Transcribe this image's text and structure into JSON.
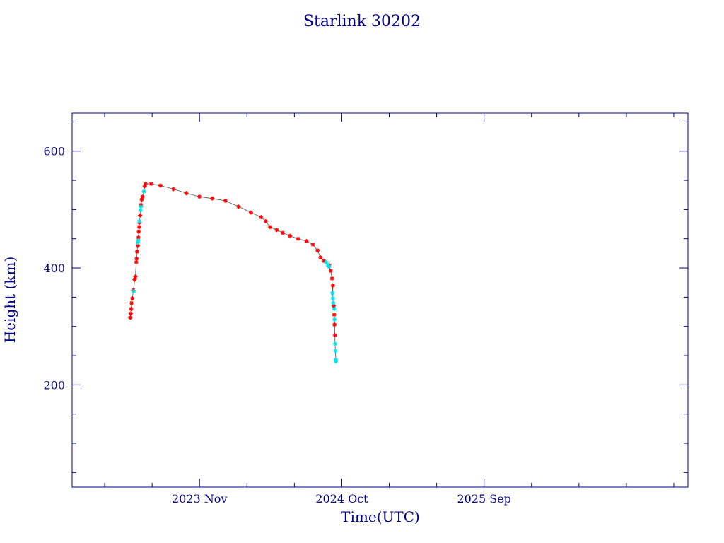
{
  "chart_data": {
    "type": "scatter",
    "title": "Starlink 30202",
    "xlabel": "Time(UTC)",
    "ylabel": "Height (km)",
    "x_axis_type": "date",
    "xlim": [
      "2023-01-05",
      "2026-12-25"
    ],
    "ylim": [
      25,
      665
    ],
    "x_ticks": [
      {
        "value": "2023-11-01",
        "label": "2023 Nov"
      },
      {
        "value": "2024-10-01",
        "label": "2024 Oct"
      },
      {
        "value": "2025-09-01",
        "label": "2025 Sep"
      }
    ],
    "y_ticks": [
      {
        "value": 200,
        "label": "200"
      },
      {
        "value": 400,
        "label": "400"
      },
      {
        "value": 600,
        "label": "600"
      }
    ],
    "grid": false,
    "legend": "none",
    "connector_color": "#555555",
    "series": [
      {
        "color": "#ff0000",
        "marker": "asterisk",
        "points": [
          [
            "2023-05-22",
            315
          ],
          [
            "2023-05-23",
            322
          ],
          [
            "2023-05-24",
            330
          ],
          [
            "2023-05-25",
            340
          ],
          [
            "2023-05-27",
            348
          ],
          [
            "2023-05-29",
            362
          ],
          [
            "2023-06-01",
            380
          ],
          [
            "2023-06-03",
            385
          ],
          [
            "2023-06-05",
            410
          ],
          [
            "2023-06-06",
            416
          ],
          [
            "2023-06-07",
            428
          ],
          [
            "2023-06-09",
            438
          ],
          [
            "2023-06-10",
            452
          ],
          [
            "2023-06-11",
            462
          ],
          [
            "2023-06-12",
            470
          ],
          [
            "2023-06-13",
            478
          ],
          [
            "2023-06-14",
            490
          ],
          [
            "2023-06-16",
            508
          ],
          [
            "2023-06-18",
            517
          ],
          [
            "2023-06-20",
            522
          ],
          [
            "2023-06-25",
            540
          ],
          [
            "2023-06-27",
            544
          ],
          [
            "2023-07-10",
            544
          ],
          [
            "2023-08-01",
            541
          ],
          [
            "2023-09-01",
            535
          ],
          [
            "2023-10-01",
            528
          ],
          [
            "2023-11-01",
            522
          ],
          [
            "2023-12-01",
            519
          ],
          [
            "2024-01-01",
            515
          ],
          [
            "2024-02-01",
            505
          ],
          [
            "2024-03-01",
            495
          ],
          [
            "2024-03-25",
            487
          ],
          [
            "2024-04-05",
            480
          ],
          [
            "2024-04-15",
            470
          ],
          [
            "2024-05-01",
            465
          ],
          [
            "2024-05-15",
            460
          ],
          [
            "2024-06-01",
            455
          ],
          [
            "2024-06-20",
            450
          ],
          [
            "2024-07-10",
            446
          ],
          [
            "2024-07-25",
            440
          ],
          [
            "2024-08-05",
            430
          ],
          [
            "2024-08-12",
            418
          ],
          [
            "2024-08-20",
            412
          ],
          [
            "2024-09-01",
            405
          ],
          [
            "2024-09-05",
            395
          ],
          [
            "2024-09-08",
            382
          ],
          [
            "2024-09-10",
            370
          ],
          [
            "2024-09-12",
            335
          ],
          [
            "2024-09-13",
            320
          ],
          [
            "2024-09-14",
            303
          ],
          [
            "2024-09-15",
            285
          ]
        ]
      },
      {
        "color": "#00e5ee",
        "marker": "asterisk",
        "points": [
          [
            "2023-05-30",
            360
          ],
          [
            "2023-06-09",
            444
          ],
          [
            "2023-06-10",
            447
          ],
          [
            "2023-06-12",
            480
          ],
          [
            "2023-06-15",
            499
          ],
          [
            "2023-06-16",
            505
          ],
          [
            "2023-06-23",
            531
          ],
          [
            "2024-08-25",
            410
          ],
          [
            "2024-08-29",
            405
          ],
          [
            "2024-09-01",
            402
          ],
          [
            "2024-09-09",
            357
          ],
          [
            "2024-09-10",
            348
          ],
          [
            "2024-09-11",
            340
          ],
          [
            "2024-09-13",
            330
          ],
          [
            "2024-09-14",
            312
          ],
          [
            "2024-09-15",
            270
          ],
          [
            "2024-09-16",
            258
          ],
          [
            "2024-09-17",
            243
          ],
          [
            "2024-09-17",
            240
          ]
        ]
      }
    ]
  }
}
